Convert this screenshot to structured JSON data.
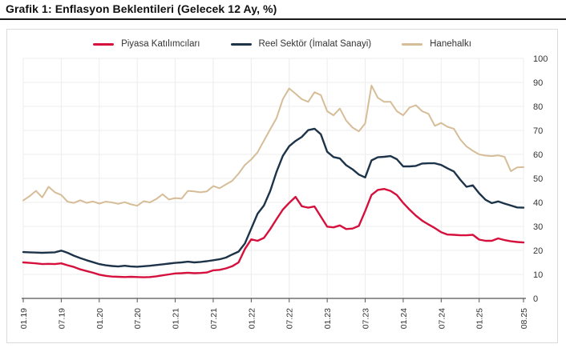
{
  "page": {
    "title": "Grafik 1: Enflasyon Beklentileri (Gelecek 12 Ay, %)"
  },
  "legend": {
    "items": [
      {
        "label": "Piyasa Katılımcıları",
        "color": "#d5103c"
      },
      {
        "label": "Reel Sektör (İmalat Sanayi)",
        "color": "#1d3349"
      },
      {
        "label": "Hanehalkı",
        "color": "#d6bd98"
      }
    ]
  },
  "colors": {
    "grid": "#ececec",
    "axis": "#555555",
    "tick_text": "#333333",
    "card_border": "#dadada",
    "title_rule": "#1a1a1a"
  },
  "chart_data": {
    "type": "line",
    "title": "Grafik 1: Enflasyon Beklentileri (Gelecek 12 Ay, %)",
    "xlabel": "",
    "ylabel": "",
    "ylim": [
      0,
      100
    ],
    "y_ticks": [
      0,
      10,
      20,
      30,
      40,
      50,
      60,
      70,
      80,
      90,
      100
    ],
    "y_tick_side": "right",
    "grid": true,
    "legend_position": "top-center",
    "x_tick_labels": [
      "01.19",
      "07.19",
      "01.20",
      "07.20",
      "01.21",
      "07.21",
      "01.22",
      "07.22",
      "01.23",
      "07.23",
      "01.24",
      "07.24",
      "01.25",
      "08.25"
    ],
    "x_tick_indices": [
      0,
      6,
      12,
      18,
      24,
      30,
      36,
      42,
      48,
      54,
      60,
      66,
      72,
      79
    ],
    "categories": [
      "01.19",
      "02.19",
      "03.19",
      "04.19",
      "05.19",
      "06.19",
      "07.19",
      "08.19",
      "09.19",
      "10.19",
      "11.19",
      "12.19",
      "01.20",
      "02.20",
      "03.20",
      "04.20",
      "05.20",
      "06.20",
      "07.20",
      "08.20",
      "09.20",
      "10.20",
      "11.20",
      "12.20",
      "01.21",
      "02.21",
      "03.21",
      "04.21",
      "05.21",
      "06.21",
      "07.21",
      "08.21",
      "09.21",
      "10.21",
      "11.21",
      "12.21",
      "01.22",
      "02.22",
      "03.22",
      "04.22",
      "05.22",
      "06.22",
      "07.22",
      "08.22",
      "09.22",
      "10.22",
      "11.22",
      "12.22",
      "01.23",
      "02.23",
      "03.23",
      "04.23",
      "05.23",
      "06.23",
      "07.23",
      "08.23",
      "09.23",
      "10.23",
      "11.23",
      "12.23",
      "01.24",
      "02.24",
      "03.24",
      "04.24",
      "05.24",
      "06.24",
      "07.24",
      "08.24",
      "09.24",
      "10.24",
      "11.24",
      "12.24",
      "01.25",
      "02.25",
      "03.25",
      "04.25",
      "05.25",
      "06.25",
      "07.25",
      "08.25"
    ],
    "series": [
      {
        "name": "Piyasa Katılımcıları",
        "color": "#d5103c",
        "stroke_width": 2.4,
        "values": [
          15.0,
          14.8,
          14.6,
          14.3,
          14.4,
          14.3,
          14.6,
          13.8,
          13.1,
          12.1,
          11.4,
          10.7,
          9.9,
          9.4,
          9.1,
          9.0,
          8.9,
          9.0,
          8.9,
          8.8,
          8.9,
          9.2,
          9.6,
          10.0,
          10.4,
          10.5,
          10.7,
          10.5,
          10.6,
          10.8,
          11.7,
          11.9,
          12.5,
          13.4,
          15.0,
          20.6,
          24.6,
          24.0,
          25.2,
          28.9,
          33.0,
          37.0,
          39.8,
          42.3,
          38.4,
          37.8,
          38.3,
          34.1,
          29.9,
          29.6,
          30.4,
          28.9,
          29.1,
          30.2,
          36.4,
          43.1,
          45.2,
          45.6,
          44.8,
          43.1,
          39.8,
          37.0,
          34.5,
          32.4,
          30.8,
          29.3,
          27.6,
          26.6,
          26.5,
          26.3,
          26.3,
          26.5,
          24.5,
          24.0,
          24.0,
          25.0,
          24.3,
          23.8,
          23.5,
          23.3
        ]
      },
      {
        "name": "Reel Sektör (İmalat Sanayi)",
        "color": "#1d3349",
        "stroke_width": 2.4,
        "values": [
          19.3,
          19.2,
          19.1,
          19.0,
          19.1,
          19.2,
          19.9,
          19.0,
          17.8,
          16.8,
          15.9,
          15.1,
          14.3,
          13.8,
          13.5,
          13.3,
          13.6,
          13.3,
          13.2,
          13.4,
          13.6,
          13.9,
          14.2,
          14.5,
          14.8,
          15.0,
          15.3,
          15.0,
          15.2,
          15.5,
          15.9,
          16.3,
          17.0,
          18.3,
          19.5,
          22.9,
          29.1,
          35.3,
          38.7,
          44.8,
          52.7,
          59.4,
          63.4,
          65.6,
          67.3,
          70.1,
          70.7,
          68.4,
          61.1,
          58.9,
          58.3,
          55.5,
          53.8,
          51.6,
          50.4,
          57.5,
          58.8,
          59.0,
          59.3,
          58.0,
          55.0,
          55.0,
          55.2,
          56.2,
          56.3,
          56.3,
          55.6,
          54.2,
          52.9,
          49.5,
          46.5,
          47.1,
          43.8,
          41.1,
          39.7,
          40.4,
          39.5,
          38.7,
          37.9,
          37.8
        ]
      },
      {
        "name": "Hanehalkı",
        "color": "#d6bd98",
        "stroke_width": 2.0,
        "values": [
          40.8,
          42.6,
          44.8,
          42.1,
          46.5,
          44.2,
          43.1,
          40.3,
          39.8,
          40.9,
          39.8,
          40.4,
          39.5,
          40.3,
          40.0,
          39.4,
          40.1,
          39.2,
          38.6,
          40.5,
          40.0,
          41.4,
          43.4,
          41.2,
          41.8,
          41.6,
          44.8,
          44.6,
          44.2,
          44.6,
          46.8,
          45.9,
          47.5,
          49.0,
          52.0,
          55.6,
          57.9,
          60.9,
          65.7,
          70.5,
          75.1,
          83.0,
          87.5,
          85.3,
          83.0,
          81.9,
          85.9,
          84.7,
          78.0,
          76.3,
          79.1,
          74.1,
          71.2,
          69.6,
          72.9,
          88.7,
          83.6,
          81.9,
          81.9,
          78.0,
          76.3,
          79.5,
          80.5,
          78.0,
          76.9,
          71.9,
          73.1,
          71.5,
          70.7,
          66.3,
          63.3,
          61.5,
          60.0,
          59.5,
          59.3,
          59.6,
          59.0,
          53.0,
          54.6,
          54.7
        ]
      }
    ]
  }
}
